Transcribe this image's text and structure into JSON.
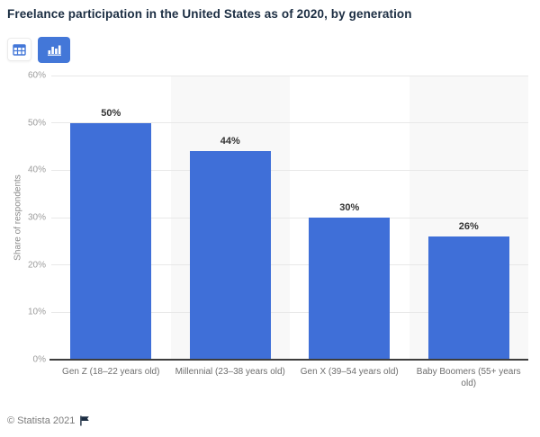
{
  "header": {
    "title": "Freelance participation in the United States as of 2020, by generation"
  },
  "toolbar": {
    "buttons": [
      {
        "id": "table-view",
        "icon": "table-icon",
        "selected": false
      },
      {
        "id": "chart-view",
        "icon": "bar-chart-icon",
        "selected": true
      }
    ],
    "accent_color": "#4377d8"
  },
  "chart_data": {
    "type": "bar",
    "title": "Freelance participation in the United States as of 2020, by generation",
    "categories": [
      "Gen Z (18–22 years old)",
      "Millennial (23–38 years old)",
      "Gen X (39–54 years old)",
      "Baby Boomers (55+ years old)"
    ],
    "values": [
      50,
      44,
      30,
      26
    ],
    "value_labels": [
      "50%",
      "44%",
      "30%",
      "26%"
    ],
    "xlabel": "",
    "ylabel": "Share of respondents",
    "ylim": [
      0,
      60
    ],
    "yticks": [
      0,
      10,
      20,
      30,
      40,
      50,
      60
    ],
    "ytick_labels": [
      "0%",
      "10%",
      "20%",
      "30%",
      "40%",
      "50%",
      "60%"
    ],
    "grid": "horizontal",
    "legend": "none",
    "bar_color": "#3f6fd8",
    "band_color": "#f8f8f8"
  },
  "footer": {
    "copyright": "© Statista 2021",
    "flag_icon": "flag-icon"
  }
}
